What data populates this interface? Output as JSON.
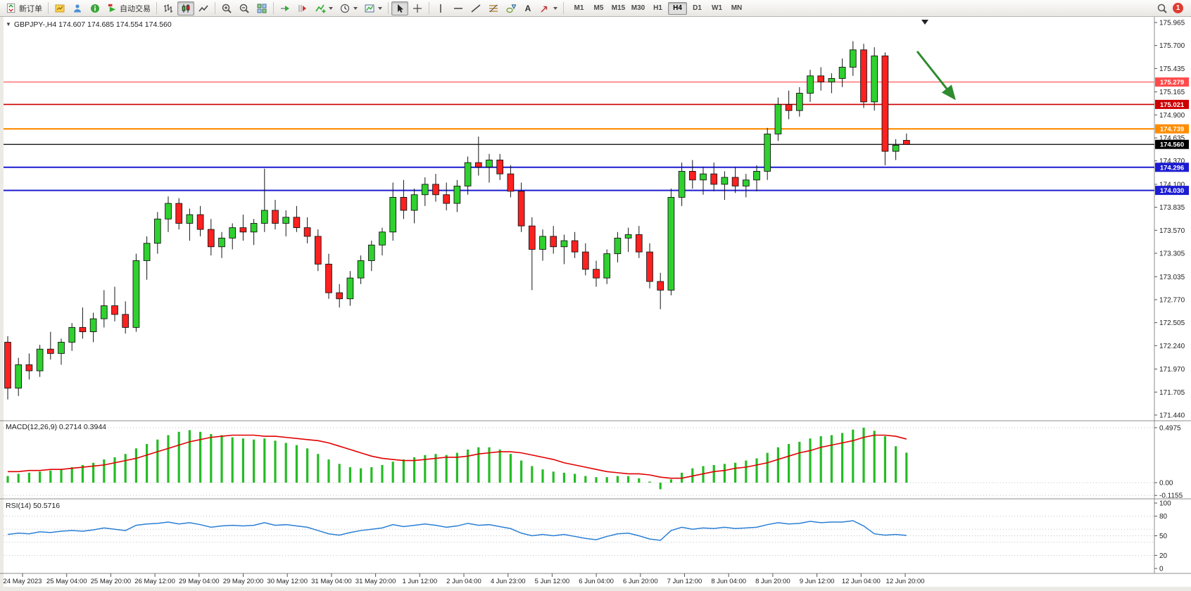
{
  "toolbar": {
    "new_order_label": "新订单",
    "auto_trading_label": "自动交易",
    "text_tool_label": "A",
    "timeframes": [
      "M1",
      "M5",
      "M15",
      "M30",
      "H1",
      "H4",
      "D1",
      "W1",
      "MN"
    ],
    "active_timeframe": "H4",
    "notification_count": "1"
  },
  "chart": {
    "symbol_label": "GBPJPY-,H4 174.607 174.685 174.554 174.560",
    "price_axis_labels": [
      "175.965",
      "175.700",
      "175.435",
      "175.165",
      "174.900",
      "174.635",
      "174.370",
      "174.100",
      "173.835",
      "173.570",
      "173.305",
      "173.035",
      "172.770",
      "172.505",
      "172.240",
      "171.970",
      "171.705",
      "171.440"
    ],
    "time_axis_labels": [
      "24 May 2023",
      "25 May 04:00",
      "25 May 20:00",
      "26 May 12:00",
      "29 May 04:00",
      "29 May 20:00",
      "30 May 12:00",
      "31 May 04:00",
      "31 May 20:00",
      "1 Jun 12:00",
      "2 Jun 04:00",
      "4 Jun 23:00",
      "5 Jun 12:00",
      "6 Jun 04:00",
      "6 Jun 20:00",
      "7 Jun 12:00",
      "8 Jun 04:00",
      "8 Jun 20:00",
      "9 Jun 12:00",
      "12 Jun 04:00",
      "12 Jun 20:00"
    ],
    "colors": {
      "up": "#2fd12f",
      "down": "#ff2020",
      "macd_hist": "#25bc25",
      "macd_signal": "#e00000",
      "rsi": "#2a7fd4",
      "arrow": "#2e8b2e"
    }
  },
  "chart_data": [
    {
      "type": "candlestick",
      "symbol": "GBPJPY-",
      "timeframe": "H4",
      "current_bar": {
        "open": 174.607,
        "high": 174.685,
        "low": 174.554,
        "close": 174.56
      },
      "ylim": [
        171.44,
        175.965
      ],
      "hlines": [
        {
          "price": 175.279,
          "label": "175.279",
          "color": "#ff4b4b",
          "width": 1.2
        },
        {
          "price": 175.021,
          "label": "175.021",
          "color": "#cc0000",
          "width": 1.6
        },
        {
          "price": 174.739,
          "label": "174.739",
          "color": "#ff8c00",
          "width": 2.2
        },
        {
          "price": 174.296,
          "label": "174.296",
          "color": "#1c1cd2",
          "width": 2
        },
        {
          "price": 174.03,
          "label": "174.030",
          "color": "#1c1cd2",
          "width": 2
        }
      ],
      "bid": {
        "price": 174.56,
        "label": "174.560",
        "color": "#000000"
      },
      "candles": [
        [
          172.28,
          172.35,
          171.62,
          171.75
        ],
        [
          171.75,
          172.1,
          171.66,
          172.02
        ],
        [
          172.02,
          172.15,
          171.85,
          171.95
        ],
        [
          171.95,
          172.25,
          171.88,
          172.2
        ],
        [
          172.2,
          172.4,
          172.08,
          172.15
        ],
        [
          172.15,
          172.32,
          172.02,
          172.28
        ],
        [
          172.28,
          172.5,
          172.18,
          172.45
        ],
        [
          172.45,
          172.68,
          172.32,
          172.4
        ],
        [
          172.4,
          172.62,
          172.28,
          172.55
        ],
        [
          172.55,
          172.88,
          172.45,
          172.7
        ],
        [
          172.7,
          172.92,
          172.52,
          172.6
        ],
        [
          172.6,
          172.75,
          172.38,
          172.45
        ],
        [
          172.45,
          173.3,
          172.4,
          173.22
        ],
        [
          173.22,
          173.5,
          173.0,
          173.42
        ],
        [
          173.42,
          173.78,
          173.3,
          173.7
        ],
        [
          173.7,
          173.96,
          173.55,
          173.88
        ],
        [
          173.88,
          173.94,
          173.58,
          173.65
        ],
        [
          173.65,
          173.82,
          173.45,
          173.75
        ],
        [
          173.75,
          173.85,
          173.5,
          173.58
        ],
        [
          173.58,
          173.7,
          173.28,
          173.38
        ],
        [
          173.38,
          173.55,
          173.25,
          173.48
        ],
        [
          173.48,
          173.65,
          173.35,
          173.6
        ],
        [
          173.6,
          173.75,
          173.45,
          173.55
        ],
        [
          173.55,
          173.7,
          173.4,
          173.65
        ],
        [
          173.65,
          174.28,
          173.55,
          173.8
        ],
        [
          173.8,
          173.92,
          173.58,
          173.65
        ],
        [
          173.65,
          173.8,
          173.5,
          173.72
        ],
        [
          173.72,
          173.85,
          173.55,
          173.6
        ],
        [
          173.6,
          173.72,
          173.42,
          173.5
        ],
        [
          173.5,
          173.58,
          173.1,
          173.18
        ],
        [
          173.18,
          173.3,
          172.78,
          172.85
        ],
        [
          172.85,
          172.95,
          172.68,
          172.78
        ],
        [
          172.78,
          173.1,
          172.7,
          173.02
        ],
        [
          173.02,
          173.28,
          172.95,
          173.22
        ],
        [
          173.22,
          173.45,
          173.1,
          173.4
        ],
        [
          173.4,
          173.6,
          173.28,
          173.55
        ],
        [
          173.55,
          174.12,
          173.45,
          173.95
        ],
        [
          173.95,
          174.15,
          173.7,
          173.8
        ],
        [
          173.8,
          174.05,
          173.65,
          173.98
        ],
        [
          173.98,
          174.18,
          173.85,
          174.1
        ],
        [
          174.1,
          174.22,
          173.9,
          173.98
        ],
        [
          173.98,
          174.12,
          173.8,
          173.88
        ],
        [
          173.88,
          174.15,
          173.78,
          174.08
        ],
        [
          174.08,
          174.42,
          173.98,
          174.35
        ],
        [
          174.35,
          174.65,
          174.2,
          174.3
        ],
        [
          174.3,
          174.45,
          174.12,
          174.38
        ],
        [
          174.38,
          174.45,
          174.15,
          174.22
        ],
        [
          174.22,
          174.32,
          173.95,
          174.02
        ],
        [
          174.02,
          174.12,
          173.55,
          173.62
        ],
        [
          173.62,
          173.72,
          172.88,
          173.35
        ],
        [
          173.35,
          173.58,
          173.22,
          173.5
        ],
        [
          173.5,
          173.62,
          173.3,
          173.38
        ],
        [
          173.38,
          173.52,
          173.18,
          173.45
        ],
        [
          173.45,
          173.55,
          173.25,
          173.32
        ],
        [
          173.32,
          173.42,
          173.05,
          173.12
        ],
        [
          173.12,
          173.22,
          172.92,
          173.02
        ],
        [
          173.02,
          173.35,
          172.95,
          173.3
        ],
        [
          173.3,
          173.55,
          173.2,
          173.48
        ],
        [
          173.48,
          173.6,
          173.32,
          173.52
        ],
        [
          173.52,
          173.62,
          173.25,
          173.32
        ],
        [
          173.32,
          173.42,
          172.9,
          172.98
        ],
        [
          172.98,
          173.08,
          172.66,
          172.88
        ],
        [
          172.88,
          174.05,
          172.82,
          173.95
        ],
        [
          173.95,
          174.35,
          173.85,
          174.25
        ],
        [
          174.25,
          174.38,
          174.05,
          174.15
        ],
        [
          174.15,
          174.3,
          173.98,
          174.22
        ],
        [
          174.22,
          174.35,
          174.02,
          174.1
        ],
        [
          174.1,
          174.25,
          173.92,
          174.18
        ],
        [
          174.18,
          174.3,
          174.0,
          174.08
        ],
        [
          174.08,
          174.22,
          173.95,
          174.15
        ],
        [
          174.15,
          174.32,
          174.02,
          174.25
        ],
        [
          174.25,
          174.75,
          174.15,
          174.68
        ],
        [
          174.68,
          175.1,
          174.6,
          175.02
        ],
        [
          175.02,
          175.18,
          174.85,
          174.95
        ],
        [
          174.95,
          175.22,
          174.88,
          175.15
        ],
        [
          175.15,
          175.42,
          175.05,
          175.35
        ],
        [
          175.35,
          175.45,
          175.18,
          175.28
        ],
        [
          175.28,
          175.38,
          175.15,
          175.32
        ],
        [
          175.32,
          175.55,
          175.22,
          175.45
        ],
        [
          175.45,
          175.75,
          175.35,
          175.65
        ],
        [
          175.65,
          175.72,
          174.98,
          175.05
        ],
        [
          175.05,
          175.68,
          174.95,
          175.58
        ],
        [
          175.58,
          175.62,
          174.32,
          174.48
        ],
        [
          174.48,
          174.62,
          174.38,
          174.55
        ],
        [
          174.607,
          174.685,
          174.554,
          174.56
        ]
      ]
    },
    {
      "type": "bar",
      "label": "MACD(12,26,9) 0.2714 0.3944",
      "current_macd": 0.2714,
      "current_signal": 0.3944,
      "axis": [
        "0.4975",
        "0.00",
        "-0.1155"
      ],
      "values": [
        0.06,
        0.08,
        0.09,
        0.1,
        0.11,
        0.12,
        0.14,
        0.16,
        0.18,
        0.21,
        0.23,
        0.26,
        0.31,
        0.35,
        0.39,
        0.43,
        0.46,
        0.475,
        0.46,
        0.44,
        0.43,
        0.41,
        0.4,
        0.39,
        0.4,
        0.38,
        0.36,
        0.34,
        0.31,
        0.26,
        0.21,
        0.17,
        0.14,
        0.13,
        0.14,
        0.16,
        0.19,
        0.21,
        0.23,
        0.25,
        0.26,
        0.25,
        0.27,
        0.3,
        0.32,
        0.32,
        0.3,
        0.26,
        0.2,
        0.15,
        0.12,
        0.1,
        0.09,
        0.08,
        0.06,
        0.05,
        0.05,
        0.06,
        0.06,
        0.04,
        0.01,
        -0.06,
        0.03,
        0.09,
        0.13,
        0.15,
        0.16,
        0.17,
        0.18,
        0.2,
        0.22,
        0.27,
        0.32,
        0.35,
        0.37,
        0.4,
        0.42,
        0.43,
        0.45,
        0.48,
        0.4975,
        0.47,
        0.42,
        0.33,
        0.2714
      ],
      "signal": [
        0.1,
        0.1,
        0.11,
        0.11,
        0.12,
        0.12,
        0.13,
        0.14,
        0.15,
        0.16,
        0.18,
        0.2,
        0.22,
        0.25,
        0.28,
        0.31,
        0.34,
        0.37,
        0.39,
        0.41,
        0.42,
        0.43,
        0.43,
        0.43,
        0.42,
        0.42,
        0.41,
        0.4,
        0.39,
        0.38,
        0.36,
        0.33,
        0.3,
        0.27,
        0.24,
        0.22,
        0.21,
        0.2,
        0.2,
        0.21,
        0.22,
        0.23,
        0.23,
        0.24,
        0.26,
        0.27,
        0.28,
        0.28,
        0.27,
        0.25,
        0.23,
        0.21,
        0.18,
        0.16,
        0.14,
        0.12,
        0.1,
        0.09,
        0.08,
        0.08,
        0.07,
        0.05,
        0.04,
        0.04,
        0.06,
        0.08,
        0.1,
        0.11,
        0.13,
        0.14,
        0.16,
        0.18,
        0.21,
        0.24,
        0.27,
        0.29,
        0.32,
        0.34,
        0.36,
        0.38,
        0.41,
        0.43,
        0.43,
        0.42,
        0.3944
      ]
    },
    {
      "type": "line",
      "label": "RSI(14) 50.5716",
      "current_value": 50.5716,
      "axis": [
        "100",
        "80",
        "50",
        "20",
        "0"
      ],
      "levels": [
        80,
        60,
        50,
        40,
        20
      ],
      "values": [
        52,
        54,
        53,
        56,
        55,
        57,
        58,
        57,
        59,
        62,
        60,
        58,
        66,
        68,
        69,
        71,
        68,
        70,
        67,
        63,
        65,
        66,
        65,
        66,
        70,
        66,
        67,
        65,
        63,
        58,
        53,
        51,
        55,
        58,
        60,
        62,
        67,
        64,
        66,
        68,
        66,
        63,
        65,
        69,
        66,
        67,
        64,
        61,
        54,
        50,
        52,
        50,
        52,
        49,
        46,
        44,
        49,
        53,
        54,
        50,
        45,
        43,
        58,
        63,
        60,
        62,
        61,
        63,
        61,
        62,
        63,
        67,
        70,
        68,
        69,
        72,
        70,
        71,
        71,
        73,
        65,
        53,
        51,
        52,
        50.57
      ]
    }
  ]
}
